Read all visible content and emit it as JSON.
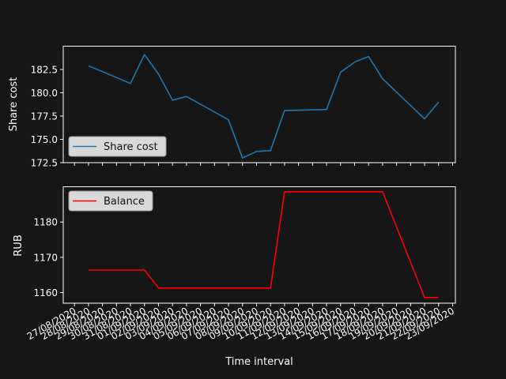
{
  "chart_data": [
    {
      "type": "line",
      "ylabel": "Share cost",
      "ylim": [
        172.5,
        185.0
      ],
      "yticks": [
        172.5,
        175.0,
        177.5,
        180.0,
        182.5
      ],
      "ytick_labels": [
        "172.5",
        "175.0",
        "177.5",
        "180.0",
        "182.5"
      ],
      "legend_position": "lower-left",
      "series": [
        {
          "name": "Share cost",
          "color": "#1f77b4",
          "x": [
            "28/08/2020",
            "31/08/2020",
            "01/09/2020",
            "02/09/2020",
            "03/09/2020",
            "04/09/2020",
            "07/09/2020",
            "08/09/2020",
            "09/09/2020",
            "10/09/2020",
            "11/09/2020",
            "14/09/2020",
            "15/09/2020",
            "16/09/2020",
            "17/09/2020",
            "18/09/2020",
            "21/09/2020",
            "22/09/2020"
          ],
          "y": [
            182.9,
            181.0,
            184.1,
            182.0,
            179.2,
            179.6,
            177.1,
            173.0,
            173.7,
            173.8,
            178.1,
            178.2,
            182.2,
            183.3,
            183.9,
            181.5,
            177.2,
            179.0
          ]
        }
      ]
    },
    {
      "type": "line",
      "xlabel": "Time interval",
      "ylabel": "RUB",
      "ylim": [
        1157,
        1190
      ],
      "yticks": [
        1160,
        1170,
        1180
      ],
      "ytick_labels": [
        "1160",
        "1170",
        "1180"
      ],
      "legend_position": "upper-left",
      "series": [
        {
          "name": "Balance",
          "color": "#ff0000",
          "x": [
            "28/08/2020",
            "01/09/2020",
            "02/09/2020",
            "10/09/2020",
            "11/09/2020",
            "18/09/2020",
            "21/09/2020",
            "22/09/2020"
          ],
          "y": [
            1166.4,
            1166.4,
            1161.3,
            1161.3,
            1188.6,
            1188.6,
            1158.6,
            1158.6
          ]
        }
      ]
    }
  ],
  "x_axis": {
    "start": "27/08/2020",
    "end": "23/09/2020",
    "tick_labels": [
      "27/08/2020",
      "28/08/2020",
      "29/08/2020",
      "30/08/2020",
      "31/08/2020",
      "01/09/2020",
      "02/09/2020",
      "03/09/2020",
      "04/09/2020",
      "05/09/2020",
      "06/09/2020",
      "07/09/2020",
      "08/09/2020",
      "09/09/2020",
      "10/09/2020",
      "11/09/2020",
      "12/09/2020",
      "13/09/2020",
      "14/09/2020",
      "15/09/2020",
      "16/09/2020",
      "17/09/2020",
      "18/09/2020",
      "19/09/2020",
      "20/09/2020",
      "21/09/2020",
      "22/09/2020",
      "23/09/2020"
    ]
  },
  "colors": {
    "background": "#161616",
    "axes": "#ffffff",
    "legend_bg": "#d9d9d9"
  }
}
